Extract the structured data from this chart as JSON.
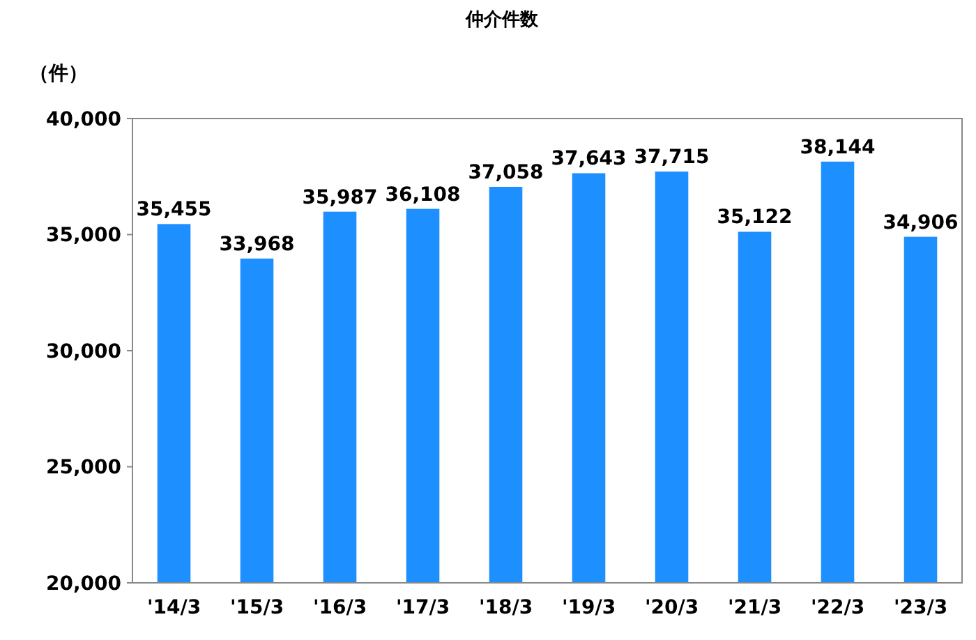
{
  "chart_data": {
    "type": "bar",
    "title": "仲介件数",
    "ylabel": "（件）",
    "categories": [
      "'14/3",
      "'15/3",
      "'16/3",
      "'17/3",
      "'18/3",
      "'19/3",
      "'20/3",
      "'21/3",
      "'22/3",
      "'23/3"
    ],
    "values": [
      35455,
      33968,
      35987,
      36108,
      37058,
      37643,
      37715,
      35122,
      38144,
      34906
    ],
    "color": "#1e8fff",
    "ylim": [
      20000,
      40000
    ],
    "yticks": [
      {
        "value": 20000,
        "label": "20,000"
      },
      {
        "value": 25000,
        "label": "25,000"
      },
      {
        "value": 30000,
        "label": "30,000"
      },
      {
        "value": 35000,
        "label": "35,000"
      },
      {
        "value": 40000,
        "label": "40,000"
      }
    ],
    "value_labels": [
      "35,455",
      "33,968",
      "35,987",
      "36,108",
      "37,058",
      "37,643",
      "37,715",
      "35,122",
      "38,144",
      "34,906"
    ],
    "grid": false
  }
}
